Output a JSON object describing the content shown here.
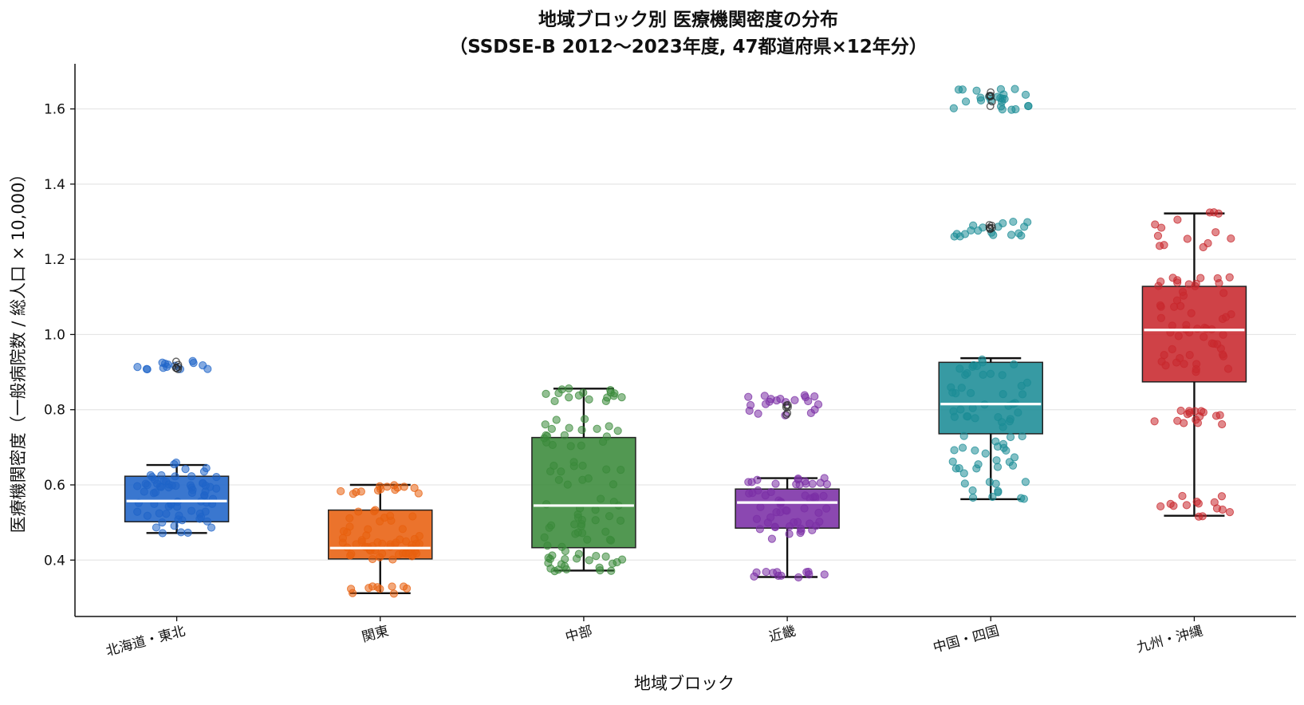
{
  "chart_data": {
    "type": "box",
    "title_line1": "地域ブロック別 医療機関密度の分布",
    "title_line2": "（SSDSE-B 2012〜2023年度, 47都道府県×12年分）",
    "xlabel": "地域ブロック",
    "ylabel": "医療機関密度（一般病院数 / 総人口 × 10,000）",
    "ylim": [
      0.25,
      1.72
    ],
    "yticks": [
      0.4,
      0.6,
      0.8,
      1.0,
      1.2,
      1.4,
      1.6
    ],
    "ytick_labels": [
      "0.4",
      "0.6",
      "0.8",
      "1.0",
      "1.2",
      "1.4",
      "1.6"
    ],
    "grid": "horizontal",
    "categories": [
      "北海道・東北",
      "関東",
      "中部",
      "近畿",
      "中国・四国",
      "九州・沖縄"
    ],
    "colors": [
      "#1f64c8",
      "#e8600f",
      "#3a8a3a",
      "#7b2fa6",
      "#1b8c96",
      "#c8282e"
    ],
    "boxes": [
      {
        "q1": 0.502,
        "median": 0.557,
        "q3": 0.623,
        "whisker_low": 0.472,
        "whisker_high": 0.653,
        "clusters": [
          [
            0.47,
            0.66,
            70
          ]
        ],
        "outliers": [
          [
            0.905,
            0.93,
            14
          ]
        ]
      },
      {
        "q1": 0.403,
        "median": 0.432,
        "q3": 0.533,
        "whisker_low": 0.312,
        "whisker_high": 0.6,
        "clusters": [
          [
            0.4,
            0.46,
            40
          ],
          [
            0.46,
            0.55,
            16
          ],
          [
            0.575,
            0.6,
            14
          ],
          [
            0.31,
            0.33,
            10
          ]
        ],
        "outliers": []
      },
      {
        "q1": 0.433,
        "median": 0.545,
        "q3": 0.726,
        "whisker_low": 0.372,
        "whisker_high": 0.856,
        "clusters": [
          [
            0.37,
            0.42,
            22
          ],
          [
            0.42,
            0.66,
            40
          ],
          [
            0.66,
            0.78,
            20
          ],
          [
            0.82,
            0.86,
            16
          ]
        ],
        "outliers": []
      },
      {
        "q1": 0.485,
        "median": 0.553,
        "q3": 0.589,
        "whisker_low": 0.355,
        "whisker_high": 0.618,
        "clusters": [
          [
            0.455,
            0.62,
            55
          ],
          [
            0.352,
            0.37,
            12
          ]
        ],
        "outliers": [
          [
            0.785,
            0.84,
            20
          ]
        ]
      },
      {
        "q1": 0.736,
        "median": 0.815,
        "q3": 0.926,
        "whisker_low": 0.562,
        "whisker_high": 0.937,
        "clusters": [
          [
            0.56,
            0.64,
            12
          ],
          [
            0.64,
            0.94,
            60
          ]
        ],
        "outliers": [
          [
            1.26,
            1.3,
            18
          ],
          [
            1.595,
            1.655,
            24
          ]
        ]
      },
      {
        "q1": 0.874,
        "median": 1.012,
        "q3": 1.128,
        "whisker_low": 0.518,
        "whisker_high": 1.322,
        "clusters": [
          [
            0.515,
            0.575,
            14
          ],
          [
            0.76,
            0.8,
            16
          ],
          [
            0.9,
            1.16,
            55
          ],
          [
            1.23,
            1.33,
            14
          ]
        ],
        "outliers": []
      }
    ]
  }
}
